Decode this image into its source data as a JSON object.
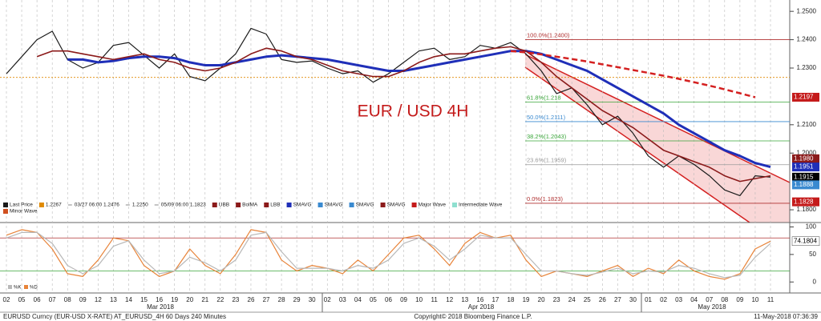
{
  "chart_data": [
    {
      "type": "line",
      "title": "EUR / USD 4H",
      "categories": [
        "02",
        "05",
        "06",
        "07",
        "08",
        "09",
        "12",
        "13",
        "14",
        "15",
        "16",
        "19",
        "20",
        "21",
        "22",
        "23",
        "26",
        "27",
        "28",
        "29",
        "30",
        "02",
        "03",
        "04",
        "05",
        "06",
        "09",
        "10",
        "11",
        "12",
        "13",
        "16",
        "17",
        "18",
        "19",
        "20",
        "23",
        "24",
        "25",
        "26",
        "27",
        "30",
        "01",
        "02",
        "03",
        "04",
        "07",
        "08",
        "09",
        "10",
        "11"
      ],
      "months": [
        "Mar 2018",
        "Apr 2018",
        "May 2018"
      ],
      "series": [
        {
          "name": "Last Price",
          "color": "#1a1a1a",
          "width": 1.2,
          "dash": false,
          "values": [
            1.228,
            1.234,
            1.24,
            1.243,
            1.233,
            1.23,
            1.232,
            1.238,
            1.239,
            1.2345,
            1.23,
            1.235,
            1.227,
            1.2255,
            1.23,
            1.235,
            1.244,
            1.242,
            1.233,
            1.232,
            1.2325,
            1.23,
            1.228,
            1.229,
            1.225,
            1.228,
            1.232,
            1.236,
            1.237,
            1.233,
            1.234,
            1.238,
            1.237,
            1.239,
            1.235,
            1.229,
            1.221,
            1.223,
            1.217,
            1.21,
            1.213,
            1.207,
            1.199,
            1.195,
            1.199,
            1.196,
            1.192,
            1.187,
            1.185,
            1.192,
            1.1915
          ]
        },
        {
          "name": "SMAVG",
          "color": "#1f2fb8",
          "width": 3,
          "dash": false,
          "values": [
            null,
            null,
            null,
            null,
            1.233,
            1.233,
            1.232,
            1.2325,
            1.2335,
            1.234,
            1.234,
            1.2335,
            1.232,
            1.231,
            1.231,
            1.232,
            1.233,
            1.234,
            1.2345,
            1.234,
            1.2335,
            1.233,
            1.232,
            1.231,
            1.23,
            1.229,
            1.229,
            1.23,
            1.231,
            1.232,
            1.233,
            1.234,
            1.235,
            1.236,
            1.236,
            1.235,
            1.233,
            1.231,
            1.229,
            1.226,
            1.223,
            1.22,
            1.217,
            1.214,
            1.21,
            1.207,
            1.204,
            1.201,
            1.199,
            1.1965,
            1.1951
          ]
        },
        {
          "name": "BolMA",
          "color": "#8b1a1a",
          "width": 1.6,
          "dash": false,
          "values": [
            null,
            null,
            1.234,
            1.236,
            1.236,
            1.235,
            1.234,
            1.233,
            1.234,
            1.235,
            1.233,
            1.232,
            1.23,
            1.229,
            1.23,
            1.232,
            1.235,
            1.237,
            1.236,
            1.234,
            1.233,
            1.231,
            1.229,
            1.228,
            1.227,
            1.227,
            1.229,
            1.232,
            1.234,
            1.235,
            1.235,
            1.236,
            1.237,
            1.2375,
            1.236,
            1.232,
            1.227,
            1.223,
            1.219,
            1.215,
            1.212,
            1.209,
            1.205,
            1.201,
            1.199,
            1.197,
            1.195,
            1.192,
            1.19,
            1.191,
            1.192
          ]
        },
        {
          "name": "SMAVG",
          "color": "#d42020",
          "width": 2.5,
          "dash": true,
          "values": [
            null,
            null,
            null,
            null,
            null,
            null,
            null,
            null,
            null,
            null,
            null,
            null,
            null,
            null,
            null,
            null,
            null,
            null,
            null,
            null,
            null,
            null,
            null,
            null,
            null,
            null,
            null,
            null,
            null,
            null,
            null,
            null,
            null,
            1.236,
            1.2355,
            1.2348,
            1.234,
            1.2332,
            1.2323,
            1.2313,
            1.2303,
            1.2293,
            1.2283,
            1.2273,
            1.2262,
            1.225,
            1.2238,
            1.2225,
            1.2211,
            1.2197,
            null
          ]
        }
      ],
      "ylim": [
        1.1755,
        1.254
      ],
      "yticks": [
        {
          "value": 1.25,
          "label": "1.2500"
        },
        {
          "value": 1.24,
          "label": "1.2400"
        },
        {
          "value": 1.23,
          "label": "1.2300"
        },
        {
          "value": 1.21,
          "label": "1.2100"
        },
        {
          "value": 1.2,
          "label": "1.2000"
        },
        {
          "value": 1.18,
          "label": "1.1800"
        }
      ],
      "levels": [
        {
          "value": 1.24,
          "label": "100.0%(1.2400)",
          "color": "#b03030"
        },
        {
          "value": 1.2267,
          "color": "#e08a00"
        },
        {
          "value": 1.218,
          "label": "61.8%(1.218",
          "color": "#3aa63a"
        },
        {
          "value": 1.2111,
          "label": "50.0%(1.2111)",
          "color": "#3a8ad0"
        },
        {
          "value": 1.2043,
          "label": "38.2%(1.2043)",
          "color": "#3aa63a"
        },
        {
          "value": 1.1959,
          "label": "23.6%(1.1959)",
          "color": "#9a9a9a"
        },
        {
          "value": 1.1823,
          "label": "0.0%(1.1823)",
          "color": "#b03030"
        }
      ],
      "price_tags": [
        {
          "value": 1.2197,
          "label": "1.2197",
          "color": "#c41a1a"
        },
        {
          "value": 1.198,
          "label": "1.1980",
          "color": "#8b1a1a"
        },
        {
          "value": 1.1951,
          "label": "1.1951",
          "color": "#1f2fb8"
        },
        {
          "value": 1.1915,
          "label": "1.1915",
          "color": "#000000"
        },
        {
          "value": 1.1888,
          "label": "1.1888",
          "color": "#3a8ad0"
        },
        {
          "value": 1.1828,
          "label": "1.1828",
          "color": "#c41a1a"
        }
      ],
      "legend": [
        {
          "label": "Last Price",
          "color": "#1a1a1a"
        },
        {
          "label": "1.2267",
          "color": "#e08a00"
        },
        {
          "label": "03/27 06:00 1.2476"
        },
        {
          "label": "1.2250"
        },
        {
          "label": "05/09 06:00 1.1823"
        },
        {
          "label": "UBB",
          "color": "#8b1a1a"
        },
        {
          "label": "BolMA",
          "color": "#8b1a1a"
        },
        {
          "label": "LBB",
          "color": "#8b1a1a"
        },
        {
          "label": "SMAVG",
          "color": "#1f2fb8"
        },
        {
          "label": "SMAVG",
          "color": "#3a8ad0"
        },
        {
          "label": "SMAVG",
          "color": "#3a8ad0"
        },
        {
          "label": "SMAVG",
          "color": "#8b1a1a"
        },
        {
          "label": "Major Wave",
          "color": "#c41a1a"
        },
        {
          "label": "Intermediate Wave",
          "color": "#8fe0d0"
        },
        {
          "label": "Minor Wave",
          "color": "#d05020"
        }
      ]
    },
    {
      "type": "line",
      "series": [
        {
          "name": "%K",
          "color": "#e8843a",
          "width": 1.2,
          "values": [
            85,
            95,
            90,
            60,
            15,
            10,
            40,
            80,
            75,
            30,
            10,
            20,
            60,
            30,
            15,
            50,
            95,
            90,
            40,
            20,
            30,
            25,
            15,
            40,
            20,
            50,
            80,
            85,
            60,
            30,
            70,
            90,
            80,
            85,
            40,
            10,
            20,
            15,
            10,
            20,
            30,
            10,
            25,
            15,
            40,
            20,
            10,
            5,
            15,
            60,
            74.1804
          ]
        },
        {
          "name": "%D",
          "color": "#b8b8b8",
          "width": 1.2,
          "values": [
            80,
            90,
            90,
            70,
            30,
            15,
            30,
            65,
            75,
            40,
            15,
            20,
            45,
            35,
            20,
            40,
            85,
            90,
            55,
            25,
            25,
            25,
            20,
            30,
            25,
            40,
            70,
            80,
            65,
            40,
            60,
            85,
            80,
            80,
            50,
            20,
            20,
            15,
            12,
            18,
            25,
            15,
            20,
            18,
            30,
            25,
            15,
            8,
            12,
            45,
            70
          ]
        }
      ],
      "ylim": [
        -20,
        108
      ],
      "yticks": [
        0,
        50,
        100
      ],
      "levels": [
        {
          "value": 80,
          "color": "#b03030"
        },
        {
          "value": 20,
          "color": "#3aa63a"
        }
      ],
      "price_tags": [
        {
          "value": 74.1804,
          "label": "74.1804",
          "color": "#ffffff"
        }
      ]
    }
  ],
  "footer": {
    "left": "EURUSD Curncy (EUR-USD X-RATE) AT_EURUSD_4H 60 Days 240 Minutes",
    "center": "Copyright© 2018 Bloomberg Finance L.P.",
    "right": "11-May-2018 07:36:39"
  }
}
